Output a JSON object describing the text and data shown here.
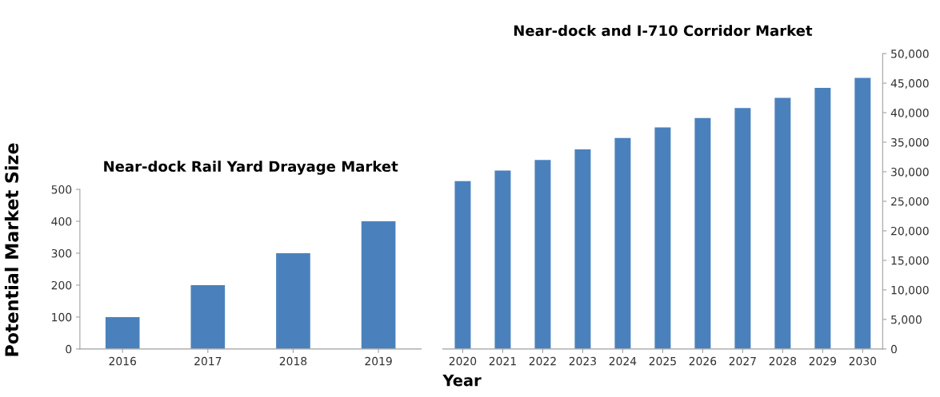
{
  "chart_data": [
    {
      "type": "bar",
      "title": "Near-dock Rail Yard Drayage Market",
      "ylabel": "Potential Market Size",
      "categories": [
        "2016",
        "2017",
        "2018",
        "2019"
      ],
      "values": [
        100,
        200,
        300,
        400
      ],
      "color": "#4a81bd",
      "ylim": [
        0,
        500
      ],
      "yticks": [
        0,
        100,
        200,
        300,
        400,
        500
      ],
      "grid": false,
      "legend": false
    },
    {
      "type": "bar",
      "title": "Near-dock and I-710 Corridor Market",
      "xlabel": "Year",
      "categories": [
        "2020",
        "2021",
        "2022",
        "2023",
        "2024",
        "2025",
        "2026",
        "2027",
        "2028",
        "2029",
        "2030"
      ],
      "values": [
        28400,
        30200,
        32000,
        33800,
        35700,
        37500,
        39100,
        40800,
        42500,
        44200,
        45900
      ],
      "color": "#4a81bd",
      "ylim": [
        0,
        50000
      ],
      "yticks": [
        {
          "value": 0,
          "label": "0"
        },
        {
          "value": 5000,
          "label": "5,000"
        },
        {
          "value": 10000,
          "label": "10,000"
        },
        {
          "value": 15000,
          "label": "15,000"
        },
        {
          "value": 20000,
          "label": "20,000"
        },
        {
          "value": 25000,
          "label": "25,000"
        },
        {
          "value": 30000,
          "label": "30,000"
        },
        {
          "value": 35000,
          "label": "35,000"
        },
        {
          "value": 40000,
          "label": "40,000"
        },
        {
          "value": 45000,
          "label": "45,000"
        },
        {
          "value": 50000,
          "label": "50,000"
        }
      ],
      "grid": false,
      "legend": false
    }
  ]
}
